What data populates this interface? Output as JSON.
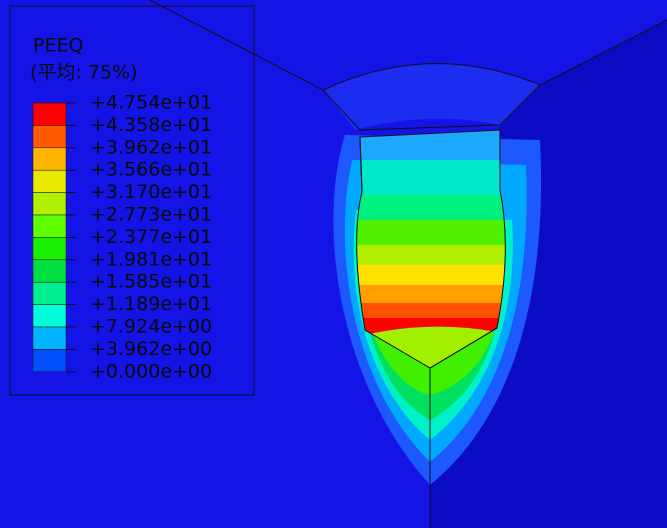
{
  "legend": {
    "title": "PEEQ",
    "subtitle": "(平均: 75%)",
    "labels": [
      "+4.754e+01",
      "+4.358e+01",
      "+3.962e+01",
      "+3.566e+01",
      "+3.170e+01",
      "+2.773e+01",
      "+2.377e+01",
      "+1.981e+01",
      "+1.585e+01",
      "+1.189e+01",
      "+7.924e+00",
      "+3.962e+00",
      "+0.000e+00"
    ],
    "colors": [
      "#ff0000",
      "#ff5a00",
      "#ffb400",
      "#e8e800",
      "#b0f000",
      "#60ff00",
      "#18f000",
      "#00e040",
      "#00f090",
      "#00ffd8",
      "#00b4ff",
      "#0050ff"
    ]
  }
}
